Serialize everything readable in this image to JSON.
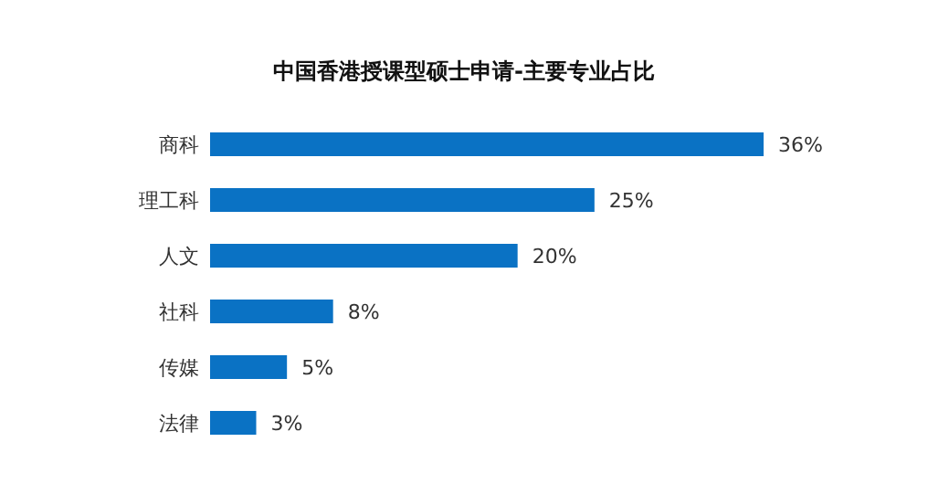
{
  "chart_data": {
    "type": "bar",
    "orientation": "horizontal",
    "title": "中国香港授课型硕士申请-主要专业占比",
    "categories": [
      "商科",
      "理工科",
      "人文",
      "社科",
      "传媒",
      "法律"
    ],
    "values": [
      36,
      25,
      20,
      8,
      5,
      3
    ],
    "value_labels": [
      "36%",
      "25%",
      "20%",
      "8%",
      "5%",
      "3%"
    ],
    "color": "#0a72c4"
  }
}
